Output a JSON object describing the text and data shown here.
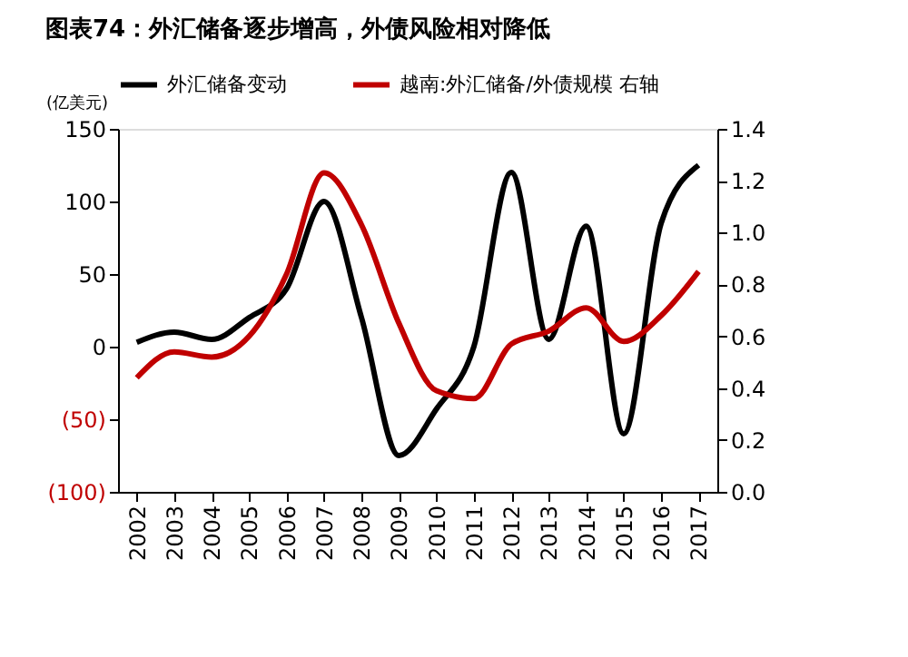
{
  "chart_data": {
    "type": "line",
    "title": "图表74：外汇储备逐步增高，外债风险相对降低",
    "ylabel": "(亿美元)",
    "categories": [
      "2002",
      "2003",
      "2004",
      "2005",
      "2006",
      "2007",
      "2008",
      "2009",
      "2010",
      "2011",
      "2012",
      "2013",
      "2014",
      "2015",
      "2016",
      "2017"
    ],
    "series": [
      {
        "name": "外汇储备变动",
        "color": "#000000",
        "values": [
          3,
          10,
          5,
          20,
          40,
          100,
          20,
          -75,
          -43,
          0,
          120,
          5,
          83,
          -60,
          85,
          125
        ]
      },
      {
        "name": "越南:外汇储备/外债规模 右轴",
        "color": "#c00000",
        "axis": "y2",
        "values": [
          0.44,
          0.54,
          0.52,
          0.6,
          0.84,
          1.23,
          1.03,
          0.65,
          0.39,
          0.36,
          0.57,
          0.62,
          0.71,
          0.58,
          0.68,
          0.85
        ]
      }
    ],
    "ylim": [
      -100,
      150
    ],
    "yticks": [
      {
        "value": -100,
        "label": "(100)"
      },
      {
        "value": -50,
        "label": "(50)"
      },
      0,
      50,
      100,
      150
    ],
    "y2lim": [
      0,
      1.4
    ],
    "y2ticks": [
      {
        "value": 0,
        "label": "0.0"
      },
      0.2,
      0.4,
      0.6,
      0.8,
      {
        "value": 1,
        "label": "1.0"
      },
      1.2,
      1.4
    ],
    "grid": false,
    "legend": "top",
    "line_style": "solid"
  }
}
